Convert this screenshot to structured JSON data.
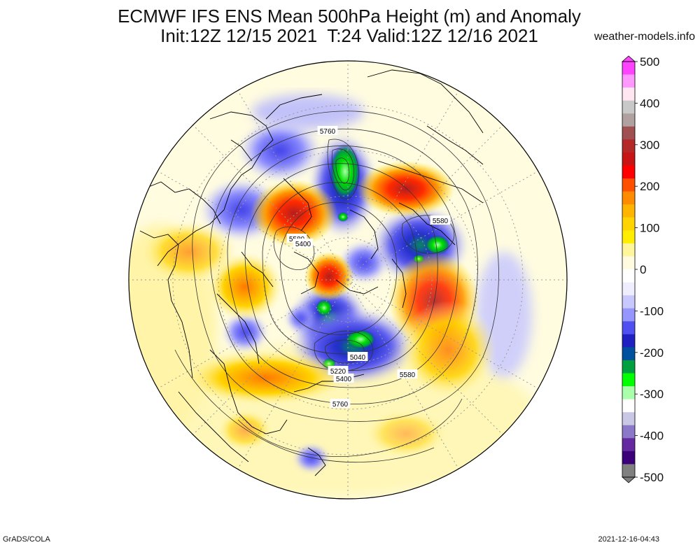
{
  "title": {
    "line1": "ECMWF IFS ENS Mean 500hPa Height (m) and Anomaly",
    "line2": "Init:12Z 12/15 2021  T:24 Valid:12Z 12/16 2021"
  },
  "source_label": "weather-models.info",
  "footer": {
    "left": "GrADS/COLA",
    "right": "2021-12-16-04:43"
  },
  "colorbar": {
    "ticks": [
      "500",
      "400",
      "300",
      "200",
      "100",
      "0",
      "-100",
      "-200",
      "-300",
      "-400",
      "-500"
    ],
    "colors": [
      "#ff44ff",
      "#ff99ff",
      "#ffe6f0",
      "#c8c8c8",
      "#b0a0a0",
      "#a05050",
      "#b42828",
      "#c81414",
      "#ff0000",
      "#ff5000",
      "#ff8c00",
      "#ffb400",
      "#ffd400",
      "#ffee00",
      "#fff59a",
      "#fffbe0",
      "#ffffff",
      "#eeeeff",
      "#c8c8ff",
      "#9696ff",
      "#5050f0",
      "#2020c0",
      "#0050a0",
      "#00a040",
      "#00ff00",
      "#aaffaa",
      "#ffffff",
      "#c8c8e6",
      "#8c78c8",
      "#6428a0",
      "#3c0078",
      "#808080"
    ]
  },
  "contour_labels": [
    "5760",
    "5580",
    "5400",
    "5580",
    "5040",
    "5220",
    "5400",
    "5580",
    "5760"
  ]
}
